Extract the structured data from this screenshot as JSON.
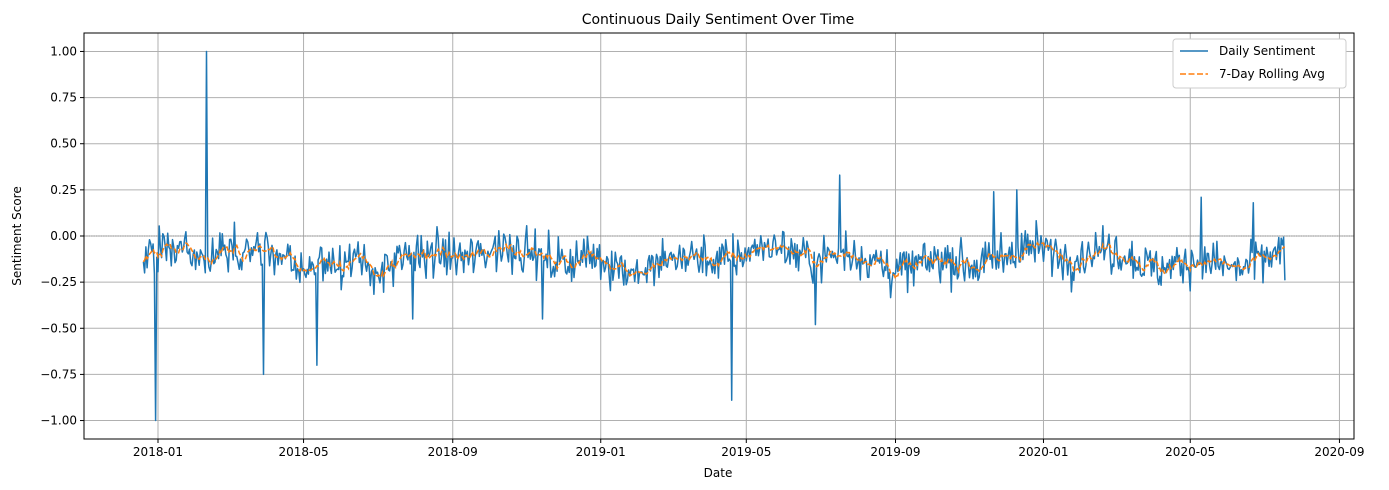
{
  "chart_data": {
    "type": "line",
    "title": "Continuous Daily Sentiment Over Time",
    "xlabel": "Date",
    "ylabel": "Sentiment Score",
    "x_range": [
      "2017-11-01",
      "2020-09-13"
    ],
    "ylim": [
      -1.1,
      1.1
    ],
    "x_ticks": [
      {
        "date": "2018-01-01",
        "label": "2018-01"
      },
      {
        "date": "2018-05-01",
        "label": "2018-05"
      },
      {
        "date": "2018-09-01",
        "label": "2018-09"
      },
      {
        "date": "2019-01-01",
        "label": "2019-01"
      },
      {
        "date": "2019-05-01",
        "label": "2019-05"
      },
      {
        "date": "2019-09-01",
        "label": "2019-09"
      },
      {
        "date": "2020-01-01",
        "label": "2020-01"
      },
      {
        "date": "2020-05-01",
        "label": "2020-05"
      },
      {
        "date": "2020-09-01",
        "label": "2020-09"
      }
    ],
    "y_ticks": [
      {
        "value": 1.0,
        "label": "1.00"
      },
      {
        "value": 0.75,
        "label": "0.75"
      },
      {
        "value": 0.5,
        "label": "0.50"
      },
      {
        "value": 0.25,
        "label": "0.25"
      },
      {
        "value": 0.0,
        "label": "0.00"
      },
      {
        "value": -0.25,
        "label": "−0.25"
      },
      {
        "value": -0.5,
        "label": "−0.50"
      },
      {
        "value": -0.75,
        "label": "−0.75"
      },
      {
        "value": -1.0,
        "label": "−1.00"
      }
    ],
    "grid": true,
    "reference_line": {
      "y": 0,
      "style": "dotted",
      "color": "#808080"
    },
    "legend_position": "top-right",
    "series": [
      {
        "name": "Daily Sentiment",
        "color": "#1f77b4",
        "style": "solid",
        "date_range": [
          "2017-12-20",
          "2020-07-18"
        ],
        "baseline_mean": -0.12,
        "typical_range": [
          -0.35,
          0.1
        ],
        "notable_points": [
          {
            "date": "2017-12-21",
            "value": -0.2
          },
          {
            "date": "2017-12-30",
            "value": -1.0
          },
          {
            "date": "2018-02-10",
            "value": 1.0
          },
          {
            "date": "2018-03-29",
            "value": -0.75
          },
          {
            "date": "2018-05-12",
            "value": -0.7
          },
          {
            "date": "2018-07-30",
            "value": -0.45
          },
          {
            "date": "2018-11-14",
            "value": -0.45
          },
          {
            "date": "2019-04-19",
            "value": -0.89
          },
          {
            "date": "2019-06-27",
            "value": -0.48
          },
          {
            "date": "2019-07-17",
            "value": 0.33
          },
          {
            "date": "2019-11-21",
            "value": 0.24
          },
          {
            "date": "2019-12-10",
            "value": 0.25
          },
          {
            "date": "2020-05-10",
            "value": 0.21
          },
          {
            "date": "2020-06-22",
            "value": 0.18
          },
          {
            "date": "2020-07-18",
            "value": -0.24
          }
        ]
      },
      {
        "name": "7-Day Rolling Avg",
        "color": "#ff7f0e",
        "style": "dashed",
        "date_range": [
          "2017-12-20",
          "2020-07-18"
        ],
        "typical_range": [
          -0.25,
          -0.03
        ]
      }
    ]
  }
}
